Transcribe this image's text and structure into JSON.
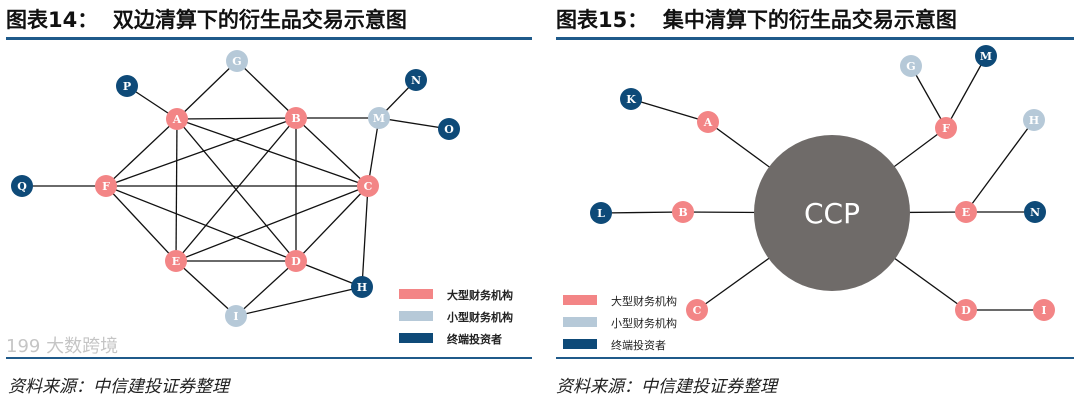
{
  "left": {
    "title": "图表14：  双边清算下的衍生品交易示意图",
    "source": "资料来源：中信建投证券整理",
    "nodes": [
      {
        "id": "A",
        "type": "large"
      },
      {
        "id": "B",
        "type": "large"
      },
      {
        "id": "C",
        "type": "large"
      },
      {
        "id": "D",
        "type": "large"
      },
      {
        "id": "E",
        "type": "large"
      },
      {
        "id": "F",
        "type": "large"
      },
      {
        "id": "G",
        "type": "small"
      },
      {
        "id": "M",
        "type": "small"
      },
      {
        "id": "I",
        "type": "small"
      },
      {
        "id": "P",
        "type": "end"
      },
      {
        "id": "N",
        "type": "end"
      },
      {
        "id": "O",
        "type": "end"
      },
      {
        "id": "Q",
        "type": "end"
      },
      {
        "id": "H",
        "type": "end"
      }
    ],
    "edges": [
      [
        "A",
        "B"
      ],
      [
        "A",
        "C"
      ],
      [
        "A",
        "D"
      ],
      [
        "A",
        "E"
      ],
      [
        "A",
        "F"
      ],
      [
        "B",
        "C"
      ],
      [
        "B",
        "D"
      ],
      [
        "B",
        "E"
      ],
      [
        "B",
        "F"
      ],
      [
        "C",
        "D"
      ],
      [
        "C",
        "E"
      ],
      [
        "C",
        "F"
      ],
      [
        "D",
        "E"
      ],
      [
        "D",
        "F"
      ],
      [
        "E",
        "F"
      ],
      [
        "A",
        "P"
      ],
      [
        "A",
        "G"
      ],
      [
        "B",
        "G"
      ],
      [
        "B",
        "M"
      ],
      [
        "M",
        "N"
      ],
      [
        "M",
        "O"
      ],
      [
        "M",
        "C"
      ],
      [
        "F",
        "Q"
      ],
      [
        "E",
        "I"
      ],
      [
        "D",
        "I"
      ],
      [
        "D",
        "H"
      ],
      [
        "C",
        "H"
      ],
      [
        "I",
        "H"
      ]
    ],
    "legend": [
      "大型财务机构",
      "小型财务机构",
      "终端投资者"
    ]
  },
  "right": {
    "title": "图表15：  集中清算下的衍生品交易示意图",
    "source": "资料来源：中信建投证券整理",
    "center": "CCP",
    "nodes": [
      {
        "id": "A",
        "type": "large"
      },
      {
        "id": "B",
        "type": "large"
      },
      {
        "id": "C",
        "type": "large"
      },
      {
        "id": "D",
        "type": "large"
      },
      {
        "id": "E",
        "type": "large"
      },
      {
        "id": "F",
        "type": "large"
      },
      {
        "id": "I",
        "type": "large"
      },
      {
        "id": "G",
        "type": "small"
      },
      {
        "id": "H",
        "type": "small"
      },
      {
        "id": "K",
        "type": "end"
      },
      {
        "id": "L",
        "type": "end"
      },
      {
        "id": "M",
        "type": "end"
      },
      {
        "id": "N",
        "type": "end"
      }
    ],
    "edges": [
      [
        "A",
        "K"
      ],
      [
        "A",
        "CCP"
      ],
      [
        "B",
        "L"
      ],
      [
        "B",
        "CCP"
      ],
      [
        "C",
        "CCP"
      ],
      [
        "D",
        "CCP"
      ],
      [
        "D",
        "I"
      ],
      [
        "E",
        "CCP"
      ],
      [
        "E",
        "N"
      ],
      [
        "E",
        "H"
      ],
      [
        "F",
        "CCP"
      ],
      [
        "F",
        "G"
      ],
      [
        "F",
        "M"
      ]
    ],
    "legend": [
      "大型财务机构",
      "小型财务机构",
      "终端投资者"
    ]
  },
  "colors": {
    "large": "#f38586",
    "small": "#b6c9d8",
    "end": "#0e4a78",
    "ccp": "#6f6b69",
    "rule": "#1f5a8a"
  },
  "watermark": "199 大数跨境"
}
